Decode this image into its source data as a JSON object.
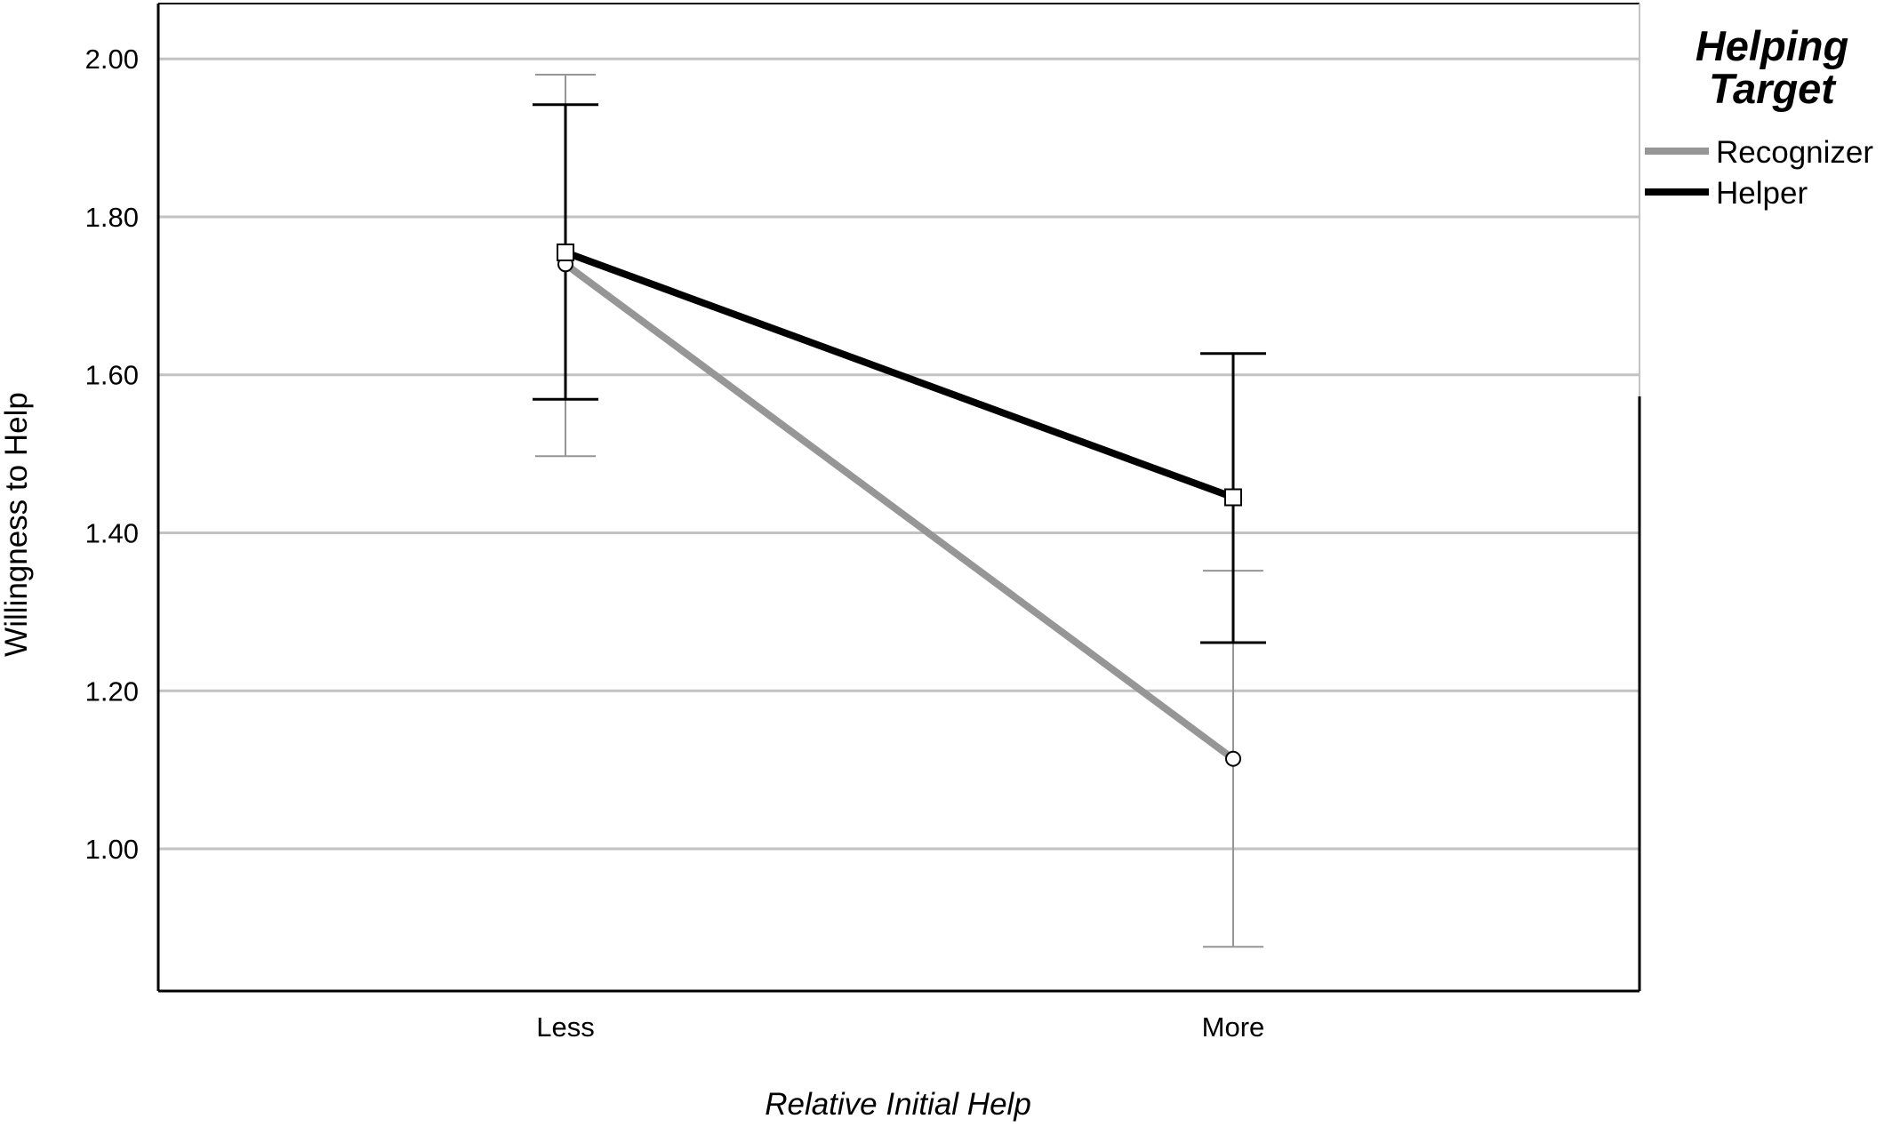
{
  "chart_data": {
    "type": "line",
    "xlabel": "Relative Initial Help",
    "ylabel": "Willingness to Help",
    "categories": [
      "Less",
      "More"
    ],
    "ylim": [
      0.82,
      2.07
    ],
    "yticks": [
      1.0,
      1.2,
      1.4,
      1.6,
      1.8,
      2.0
    ],
    "ytick_labels": [
      "1.00",
      "1.20",
      "1.40",
      "1.60",
      "1.80",
      "2.00"
    ],
    "grid": true,
    "legend_title": "Helping Target",
    "legend_position": "top-right",
    "series": [
      {
        "name": "Recognizer",
        "color": "#969696",
        "marker": "circle",
        "values": [
          1.74,
          1.114
        ],
        "err_low": [
          1.497,
          0.876
        ],
        "err_high": [
          1.98,
          1.352
        ]
      },
      {
        "name": "Helper",
        "color": "#000000",
        "marker": "square",
        "values": [
          1.755,
          1.445
        ],
        "err_low": [
          1.569,
          1.261
        ],
        "err_high": [
          1.942,
          1.627
        ]
      }
    ]
  }
}
